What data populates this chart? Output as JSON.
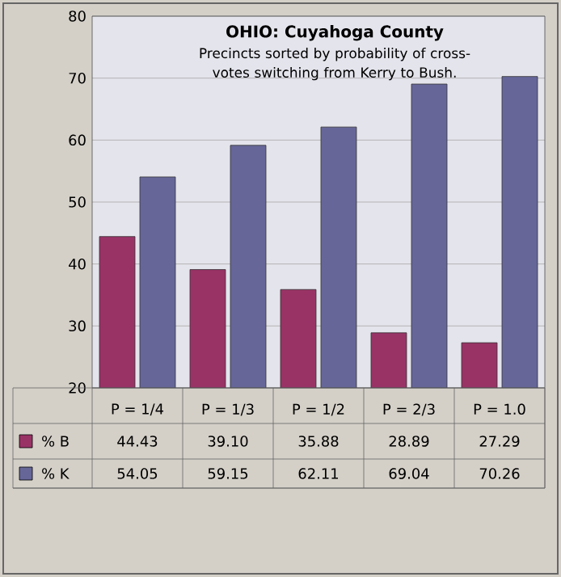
{
  "chart_data": {
    "type": "bar",
    "title": "OHIO: Cuyahoga  County",
    "subtitle": "Precincts sorted by probability of cross-votes switching from Kerry to Bush.",
    "categories": [
      "P = 1/4",
      "P = 1/3",
      "P = 1/2",
      "P = 2/3",
      "P = 1.0"
    ],
    "series": [
      {
        "name": "% B",
        "color": "#993366",
        "values": [
          44.43,
          39.1,
          35.88,
          28.89,
          27.29
        ],
        "value_labels": [
          "44.43",
          "39.10",
          "35.88",
          "28.89",
          "27.29"
        ]
      },
      {
        "name": "% K",
        "color": "#666699",
        "values": [
          54.05,
          59.15,
          62.11,
          69.04,
          70.26
        ],
        "value_labels": [
          "54.05",
          "59.15",
          "62.11",
          "69.04",
          "70.26"
        ]
      }
    ],
    "ylim": [
      20,
      80
    ],
    "yticks": [
      20,
      30,
      40,
      50,
      60,
      70,
      80
    ],
    "grid": "y",
    "legend": "bottom"
  }
}
